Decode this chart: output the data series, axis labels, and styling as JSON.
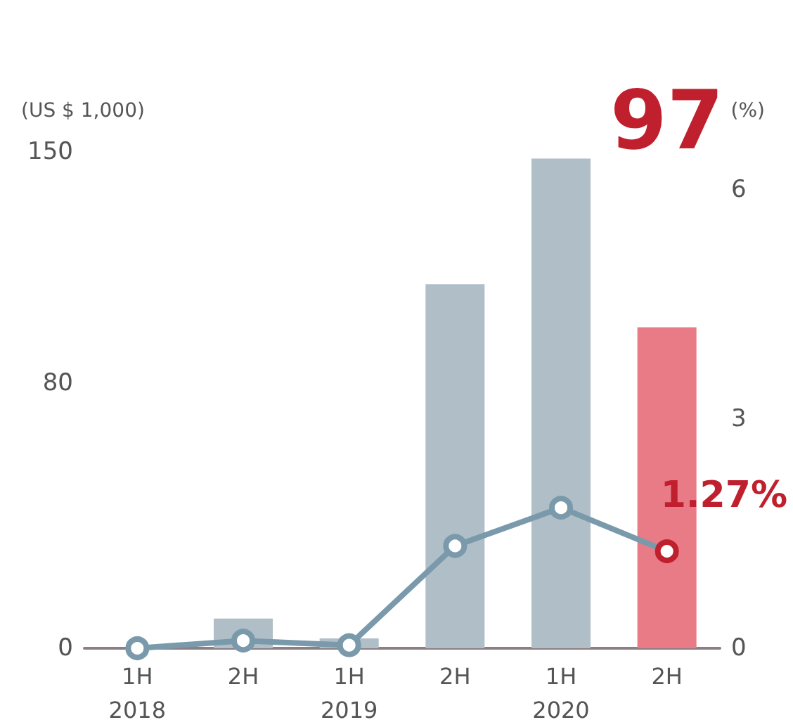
{
  "chart_data": {
    "type": "bar",
    "ylabel": "(US $ 1,000)",
    "y2label": "(%)",
    "categories": [
      "1H\n2018",
      "2H",
      "1H\n2019",
      "2H",
      "1H\n2020",
      "2H"
    ],
    "series": [
      {
        "colors": [
          "#b0bec8",
          "#b0bec8",
          "#b0bec8",
          "#b0bec8",
          "#b0bec8",
          "#e87b86"
        ],
        "values": [
          0,
          9,
          3,
          110,
          148,
          97
        ],
        "value_labels": [
          null,
          null,
          null,
          null,
          null,
          "97"
        ]
      },
      {
        "type": "line",
        "axis": "y2",
        "color": "#7a9aab",
        "colors": [
          "#7a9aab",
          "#7a9aab",
          "#7a9aab",
          "#7a9aab",
          "#7a9aab",
          "#c0202e"
        ],
        "values": [
          0,
          0.1,
          0.04,
          1.34,
          1.84,
          1.27
        ],
        "value_labels": [
          null,
          null,
          null,
          null,
          null,
          "1.27%"
        ]
      }
    ],
    "ylim": [
      0,
      150
    ],
    "yticks": [
      0,
      80,
      150
    ],
    "y2lim": [
      0,
      6.5
    ],
    "y2ticks": [
      0,
      3,
      6
    ],
    "grid": false,
    "marker": "circle",
    "line_style": "solid"
  }
}
